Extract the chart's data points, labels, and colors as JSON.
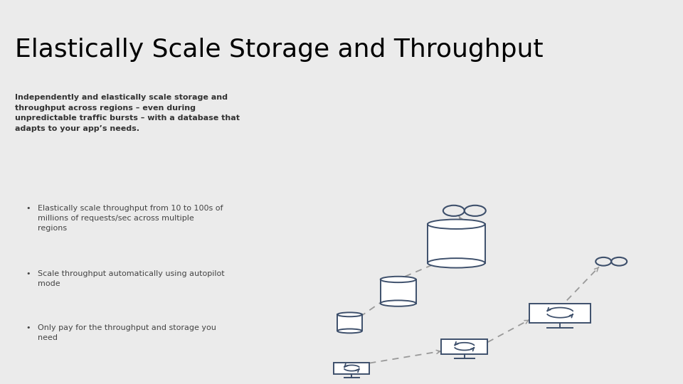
{
  "title": "Elastically Scale Storage and Throughput",
  "title_fontsize": 26,
  "title_color": "#000000",
  "background_color": "#ebebeb",
  "top_bar_color": "#ffffff",
  "subtitle": "Independently and elastically scale storage and\nthroughput across regions – even during\nunpredictable traffic bursts – with a database that\nadapts to your app’s needs.",
  "bullet_points": [
    "Elastically scale throughput from 10 to 100s of\nmillions of requests/sec across multiple\nregions",
    "Scale throughput automatically using autopilot\nmode",
    "Only pay for the throughput and storage you\nneed"
  ],
  "icon_color": "#3d4f6b",
  "dashed_color": "#999999",
  "text_color": "#444444",
  "title_bar_height": 0.222
}
